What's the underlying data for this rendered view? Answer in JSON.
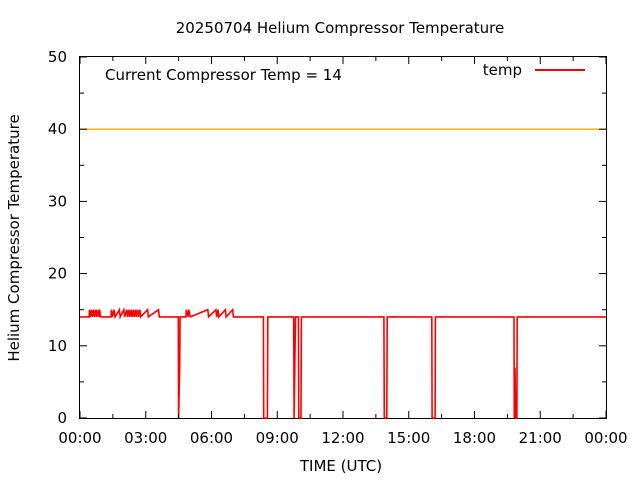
{
  "chart_data": {
    "type": "line",
    "title": "20250704 Helium Compressor Temperature",
    "xlabel": "TIME (UTC)",
    "ylabel": "Helium Compressor Temperature",
    "xlim": [
      "00:00",
      "24:00"
    ],
    "ylim": [
      0,
      50
    ],
    "x_tick_labels": [
      "00:00",
      "03:00",
      "06:00",
      "09:00",
      "12:00",
      "15:00",
      "18:00",
      "21:00",
      "00:00"
    ],
    "y_tick_labels": [
      "0",
      "10",
      "20",
      "30",
      "40",
      "50"
    ],
    "grid": false,
    "legend_position": "top-right",
    "annotation": "Current Compressor Temp = 14",
    "threshold": {
      "value": 40,
      "color": "#ffb000"
    },
    "series": [
      {
        "name": "temp",
        "color": "#ff0000",
        "baseline": 14,
        "points": [
          [
            "00:00",
            14
          ],
          [
            "00:25",
            14
          ],
          [
            "00:26",
            15
          ],
          [
            "00:28",
            14
          ],
          [
            "00:32",
            15
          ],
          [
            "00:34",
            14
          ],
          [
            "00:38",
            15
          ],
          [
            "00:40",
            14
          ],
          [
            "00:44",
            15
          ],
          [
            "00:46",
            14
          ],
          [
            "00:50",
            15
          ],
          [
            "00:52",
            14
          ],
          [
            "00:54",
            15
          ],
          [
            "00:56",
            14
          ],
          [
            "01:25",
            14
          ],
          [
            "01:26",
            15
          ],
          [
            "01:29",
            14
          ],
          [
            "01:33",
            15
          ],
          [
            "01:36",
            14
          ],
          [
            "01:48",
            15
          ],
          [
            "01:50",
            14
          ],
          [
            "02:00",
            15
          ],
          [
            "02:02",
            14
          ],
          [
            "02:08",
            15
          ],
          [
            "02:10",
            14
          ],
          [
            "02:14",
            15
          ],
          [
            "02:16",
            14
          ],
          [
            "02:20",
            15
          ],
          [
            "02:22",
            14
          ],
          [
            "02:26",
            15
          ],
          [
            "02:28",
            14
          ],
          [
            "02:32",
            15
          ],
          [
            "02:34",
            14
          ],
          [
            "02:38",
            15
          ],
          [
            "02:40",
            14
          ],
          [
            "02:44",
            15
          ],
          [
            "02:46",
            14
          ],
          [
            "03:05",
            15
          ],
          [
            "03:07",
            14
          ],
          [
            "03:35",
            15
          ],
          [
            "03:37",
            14
          ],
          [
            "04:29",
            14
          ],
          [
            "04:30",
            0
          ],
          [
            "04:33",
            7
          ],
          [
            "04:34",
            14
          ],
          [
            "04:50",
            14
          ],
          [
            "04:51",
            15
          ],
          [
            "04:56",
            14
          ],
          [
            "04:58",
            15
          ],
          [
            "05:02",
            14
          ],
          [
            "05:50",
            15
          ],
          [
            "05:52",
            14
          ],
          [
            "06:12",
            15
          ],
          [
            "06:14",
            14
          ],
          [
            "06:18",
            15
          ],
          [
            "06:20",
            14
          ],
          [
            "06:38",
            15
          ],
          [
            "06:40",
            14
          ],
          [
            "06:58",
            15
          ],
          [
            "07:00",
            14
          ],
          [
            "08:22",
            14
          ],
          [
            "08:23",
            0
          ],
          [
            "08:33",
            0
          ],
          [
            "08:34",
            14
          ],
          [
            "09:45",
            14
          ],
          [
            "09:46",
            0
          ],
          [
            "09:48",
            7
          ],
          [
            "09:50",
            14
          ],
          [
            "09:58",
            14
          ],
          [
            "09:59",
            0
          ],
          [
            "10:05",
            0
          ],
          [
            "10:06",
            14
          ],
          [
            "13:52",
            14
          ],
          [
            "13:53",
            0
          ],
          [
            "14:00",
            0
          ],
          [
            "14:01",
            14
          ],
          [
            "16:03",
            14
          ],
          [
            "16:04",
            0
          ],
          [
            "16:12",
            0
          ],
          [
            "16:13",
            14
          ],
          [
            "19:48",
            14
          ],
          [
            "19:49",
            0
          ],
          [
            "19:51",
            7
          ],
          [
            "19:53",
            0
          ],
          [
            "19:56",
            0
          ],
          [
            "19:57",
            14
          ],
          [
            "24:00",
            14
          ]
        ]
      }
    ]
  }
}
